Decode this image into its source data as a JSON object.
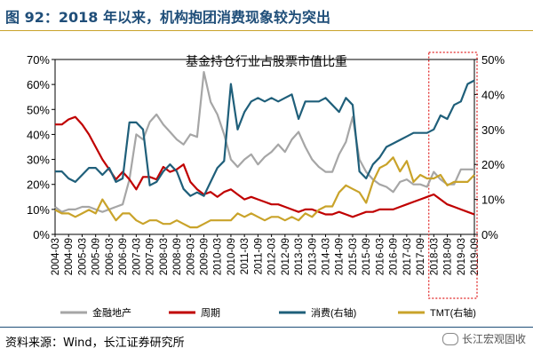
{
  "header": {
    "title": "图 92：2018 年以来，机构抱团消费现象较为突出"
  },
  "footer": {
    "source": "资料来源：Wind，长江证券研究所",
    "watermark": "长江宏观固收"
  },
  "chart_data": {
    "type": "line",
    "title": "基金持仓行业占股票市值比重",
    "x": [
      "2004-03",
      "2004-06",
      "2004-09",
      "2004-12",
      "2005-03",
      "2005-06",
      "2005-09",
      "2005-12",
      "2006-03",
      "2006-06",
      "2006-09",
      "2006-12",
      "2007-03",
      "2007-06",
      "2007-09",
      "2007-12",
      "2008-03",
      "2008-06",
      "2008-09",
      "2008-12",
      "2009-03",
      "2009-06",
      "2009-09",
      "2009-12",
      "2010-03",
      "2010-06",
      "2010-09",
      "2010-12",
      "2011-03",
      "2011-06",
      "2011-09",
      "2011-12",
      "2012-03",
      "2012-06",
      "2012-09",
      "2012-12",
      "2013-03",
      "2013-06",
      "2013-09",
      "2013-12",
      "2014-03",
      "2014-06",
      "2014-09",
      "2014-12",
      "2015-03",
      "2015-06",
      "2015-09",
      "2015-12",
      "2016-03",
      "2016-06",
      "2016-09",
      "2016-12",
      "2017-03",
      "2017-06",
      "2017-09",
      "2017-12",
      "2018-03",
      "2018-06",
      "2018-09",
      "2018-12",
      "2019-03",
      "2019-06",
      "2019-09"
    ],
    "x_tick_labels": [
      "2004-03",
      "2004-09",
      "2005-03",
      "2005-09",
      "2006-03",
      "2006-09",
      "2007-03",
      "2007-09",
      "2008-03",
      "2008-09",
      "2009-03",
      "2009-09",
      "2010-03",
      "2010-09",
      "2011-03",
      "2011-09",
      "2012-03",
      "2012-09",
      "2013-03",
      "2013-09",
      "2014-03",
      "2014-09",
      "2015-03",
      "2015-09",
      "2016-03",
      "2016-09",
      "2017-03",
      "2017-09",
      "2018-03",
      "2018-09",
      "2019-03",
      "2019-09"
    ],
    "left_axis": {
      "ylim": [
        0,
        70
      ],
      "ticks": [
        "0%",
        "10%",
        "20%",
        "30%",
        "40%",
        "50%",
        "60%",
        "70%"
      ]
    },
    "right_axis": {
      "ylim": [
        0,
        50
      ],
      "ticks": [
        "0%",
        "10%",
        "20%",
        "30%",
        "40%",
        "50%"
      ]
    },
    "series": [
      {
        "name": "金融地产",
        "axis": "left",
        "color": "#a6a6a6",
        "values": [
          11,
          9,
          10,
          10,
          11,
          11,
          10,
          9,
          10,
          11,
          12,
          22,
          40,
          38,
          45,
          48,
          44,
          41,
          38,
          36,
          40,
          39,
          65,
          53,
          48,
          40,
          30,
          27,
          30,
          32,
          28,
          31,
          33,
          36,
          33,
          38,
          41,
          35,
          30,
          27,
          25,
          25,
          32,
          37,
          47,
          30,
          25,
          22,
          20,
          19,
          17,
          21,
          22,
          20,
          20,
          19,
          25,
          22,
          20,
          20,
          26,
          26,
          26
        ],
        "type": "line"
      },
      {
        "name": "周期",
        "axis": "left",
        "color": "#c00000",
        "values": [
          44,
          44,
          46,
          47,
          44,
          40,
          35,
          30,
          26,
          22,
          25,
          22,
          18,
          23,
          23,
          22,
          27,
          25,
          26,
          28,
          21,
          18,
          16,
          17,
          15,
          17,
          18,
          16,
          14,
          15,
          14,
          13,
          12,
          12,
          11,
          10,
          9,
          10,
          10,
          9,
          8,
          8,
          9,
          8,
          7,
          8,
          9,
          9,
          10,
          10,
          10,
          11,
          12,
          13,
          14,
          15,
          16,
          14,
          12,
          11,
          10,
          9,
          8
        ],
        "type": "line"
      },
      {
        "name": "消费(右轴)",
        "axis": "right",
        "color": "#1f5f7a",
        "values": [
          18,
          18,
          16,
          15,
          17,
          19,
          19,
          17,
          19,
          15,
          16,
          32,
          32,
          30,
          14,
          15,
          18,
          20,
          18,
          13,
          11,
          12,
          11,
          15,
          19,
          21,
          43,
          30,
          35,
          38,
          39,
          38,
          39,
          38,
          39,
          40,
          33,
          38,
          38,
          38,
          39,
          37,
          35,
          39,
          37,
          18,
          16,
          20,
          22,
          25,
          26,
          27,
          28,
          29,
          29,
          29,
          30,
          34,
          33,
          37,
          38,
          43,
          44
        ],
        "type": "line"
      },
      {
        "name": "TMT(右轴)",
        "axis": "right",
        "color": "#c9a32a",
        "values": [
          7,
          6,
          6,
          5,
          6,
          7,
          6,
          10,
          7,
          4,
          6,
          6,
          4,
          3,
          4,
          4,
          3,
          3,
          4,
          3,
          2,
          2,
          3,
          4,
          4,
          4,
          4,
          6,
          5,
          6,
          5,
          4,
          5,
          5,
          4,
          5,
          4,
          6,
          5,
          7,
          8,
          8,
          12,
          14,
          13,
          12,
          9,
          15,
          19,
          20,
          22,
          18,
          21,
          15,
          17,
          16,
          16,
          17,
          14,
          15,
          15,
          15,
          17
        ],
        "type": "line"
      }
    ],
    "annotation": "dashed-rectangle-2018-03-to-2019-09"
  }
}
